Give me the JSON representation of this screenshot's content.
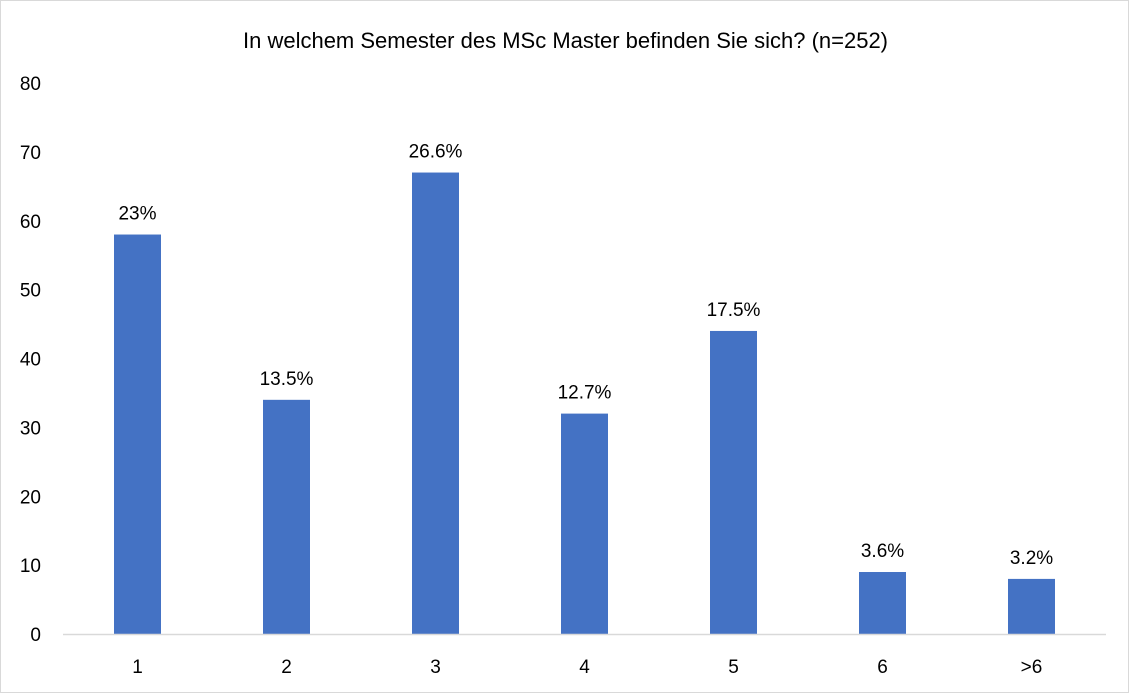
{
  "chart_data": {
    "type": "bar",
    "title": "In welchem Semester des MSc Master befinden Sie sich? (n=252)",
    "xlabel": "",
    "ylabel": "",
    "categories": [
      "1",
      "2",
      "3",
      "4",
      "5",
      "6",
      ">6"
    ],
    "values": [
      58,
      34,
      67,
      32,
      44,
      9,
      8
    ],
    "data_labels": [
      "23%",
      "13.5%",
      "26.6%",
      "12.7%",
      "17.5%",
      "3.6%",
      "3.2%"
    ],
    "ylim": [
      0,
      80
    ],
    "yticks": [
      "0",
      "10",
      "20",
      "30",
      "40",
      "50",
      "60",
      "70",
      "80"
    ],
    "grid": false,
    "legend": "none",
    "colors": {
      "bar": "#4472C4",
      "axis": "#d9d9d9",
      "border": "#d9d9d9",
      "text": "#000000"
    }
  }
}
